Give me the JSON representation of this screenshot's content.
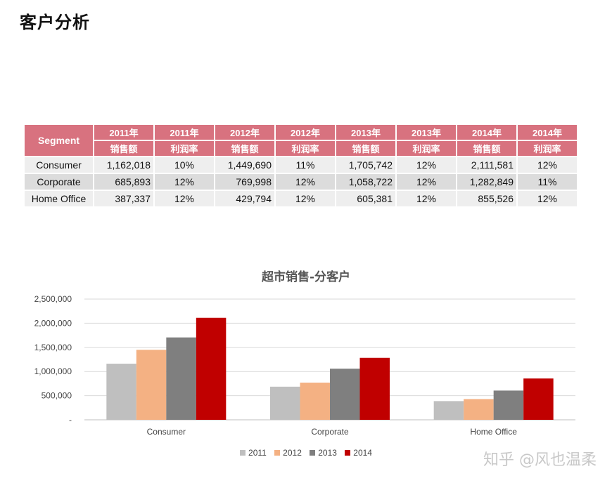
{
  "page_title": "客户分析",
  "table": {
    "segment_header": "Segment",
    "year_headers": [
      "2011年",
      "2011年",
      "2012年",
      "2012年",
      "2013年",
      "2013年",
      "2014年",
      "2014年"
    ],
    "metric_headers": [
      "销售额",
      "利润率",
      "销售额",
      "利润率",
      "销售额",
      "利润率",
      "销售额",
      "利润率"
    ],
    "rows": [
      {
        "segment": "Consumer",
        "cells": [
          "1,162,018",
          "10%",
          "1,449,690",
          "11%",
          "1,705,742",
          "12%",
          "2,111,581",
          "12%"
        ]
      },
      {
        "segment": "Corporate",
        "cells": [
          "685,893",
          "12%",
          "769,998",
          "12%",
          "1,058,722",
          "12%",
          "1,282,849",
          "11%"
        ]
      },
      {
        "segment": "Home Office",
        "cells": [
          "387,337",
          "12%",
          "429,794",
          "12%",
          "605,381",
          "12%",
          "855,526",
          "12%"
        ]
      }
    ]
  },
  "chart_data": {
    "type": "bar",
    "title": "超市销售-分客户",
    "categories": [
      "Consumer",
      "Corporate",
      "Home Office"
    ],
    "series": [
      {
        "name": "2011",
        "color": "#bfbfbf",
        "values": [
          1162018,
          685893,
          387337
        ]
      },
      {
        "name": "2012",
        "color": "#f4b183",
        "values": [
          1449690,
          769998,
          429794
        ]
      },
      {
        "name": "2013",
        "color": "#7f7f7f",
        "values": [
          1705742,
          1058722,
          605381
        ]
      },
      {
        "name": "2014",
        "color": "#c00000",
        "values": [
          2111581,
          1282849,
          855526
        ]
      }
    ],
    "ylim": [
      0,
      2500000
    ],
    "yticks": [
      "-",
      "500,000",
      "1,000,000",
      "1,500,000",
      "2,000,000",
      "2,500,000"
    ],
    "grid": true,
    "legend_position": "bottom"
  },
  "colors": {
    "table_header": "#d8727f",
    "row_light": "#eeeeee",
    "row_dark": "#dcdcdc"
  },
  "watermark": "知乎 @风也温柔"
}
